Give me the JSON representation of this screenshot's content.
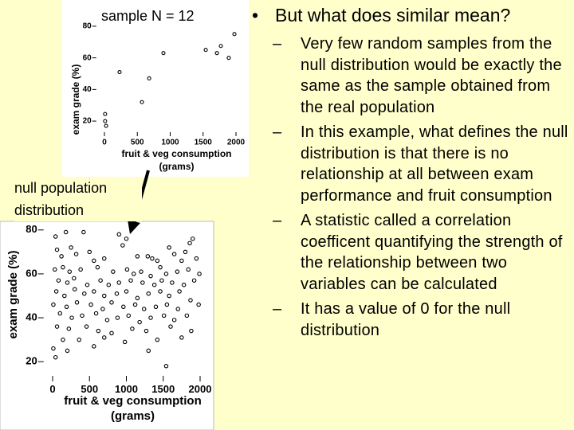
{
  "chart_data": [
    {
      "type": "scatter",
      "title": "sample N = 12",
      "x_label_lines": [
        "fruit & veg consumption",
        "(grams)"
      ],
      "y_label": "exam grade (%)",
      "x": [
        1976,
        1770,
        1540,
        1710,
        1890,
        897,
        230,
        680,
        570,
        10,
        10,
        25
      ],
      "values": [
        75,
        67.5,
        65,
        63,
        60,
        63,
        51,
        47,
        32,
        24.5,
        20,
        17
      ],
      "xlim": [
        -100,
        2100
      ],
      "ylim": [
        15,
        85
      ],
      "xticks": [
        0,
        500,
        1000,
        1500,
        2000
      ],
      "yticks": [
        20,
        40,
        60,
        80
      ],
      "color": "#000000"
    },
    {
      "type": "scatter",
      "title": "null population distribution",
      "x_label_lines": [
        "fruit & veg consumption",
        "(grams)"
      ],
      "y_label": "exam grade (%)",
      "x": [
        40,
        180,
        420,
        900,
        1000,
        1860,
        60,
        250,
        500,
        950,
        1580,
        1800,
        1900,
        120,
        320,
        560,
        700,
        1150,
        1290,
        1350,
        1420,
        1650,
        1750,
        1950,
        30,
        140,
        230,
        380,
        610,
        820,
        1010,
        1100,
        1200,
        1330,
        1460,
        1540,
        1690,
        1840,
        1990,
        80,
        200,
        290,
        470,
        650,
        760,
        900,
        1060,
        1220,
        1380,
        1480,
        1620,
        1780,
        1920,
        50,
        160,
        300,
        430,
        560,
        700,
        870,
        1000,
        1150,
        1300,
        1460,
        1580,
        1720,
        1870,
        10,
        190,
        330,
        520,
        680,
        800,
        960,
        1120,
        1240,
        1400,
        1550,
        1700,
        1980,
        100,
        260,
        400,
        590,
        740,
        880,
        1030,
        1180,
        1330,
        1510,
        1650,
        1820,
        60,
        220,
        460,
        620,
        800,
        1080,
        1270,
        1600,
        1880,
        140,
        360,
        700,
        980,
        1420,
        1750,
        10,
        200,
        560,
        1300,
        1540,
        40
      ],
      "values": [
        77,
        79,
        79,
        78,
        76,
        74,
        71,
        72,
        70,
        73,
        72,
        70,
        76,
        68,
        69,
        66,
        67,
        68,
        68,
        67,
        66,
        69,
        66,
        67,
        62,
        63,
        61,
        62,
        63,
        61,
        62,
        60,
        61,
        59,
        63,
        60,
        61,
        62,
        60,
        57,
        56,
        58,
        55,
        57,
        55,
        56,
        57,
        56,
        55,
        57,
        56,
        55,
        57,
        52,
        50,
        53,
        51,
        52,
        50,
        51,
        52,
        49,
        51,
        52,
        50,
        52,
        48,
        46,
        45,
        47,
        46,
        44,
        47,
        45,
        46,
        44,
        45,
        46,
        44,
        46,
        42,
        40,
        41,
        42,
        39,
        40,
        41,
        38,
        40,
        41,
        39,
        41,
        36,
        35,
        36,
        34,
        33,
        35,
        34,
        36,
        34,
        30,
        30,
        31,
        29,
        30,
        31,
        26,
        25,
        27,
        25,
        18,
        22
      ],
      "xlim": [
        -100,
        2100
      ],
      "ylim": [
        15,
        85
      ],
      "xticks": [
        0,
        500,
        1000,
        1500,
        2000
      ],
      "yticks": [
        20,
        40,
        60,
        80
      ],
      "color": "#000000"
    }
  ],
  "slide": {
    "bullet": "But what does similar mean?",
    "sub_bullets": [
      "Very few random samples from the null distribution would be exactly the same as the sample obtained from the real population",
      "In this example, what defines the null distribution is that there is no relationship at all between exam performance and fruit consumption",
      "A statistic called a correlation coefficent quantifying the strength of the relationship between two variables can be calculated",
      "It has a value of 0 for the null distribution"
    ]
  }
}
